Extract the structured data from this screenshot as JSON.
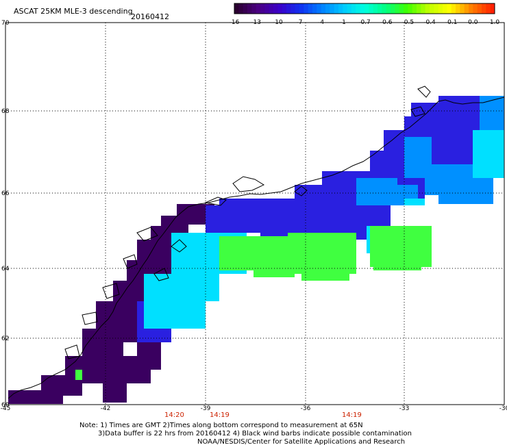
{
  "title": "ASCAT 25KM MLE-3 descending",
  "date": "20160412",
  "colorbar": {
    "labels": [
      "-16",
      "-13",
      "-10",
      "-7",
      "-4",
      "-1",
      "-0.7",
      "-0.6",
      "-0.5",
      "-0.4",
      "-0.1",
      "0.0",
      "1.0"
    ],
    "colors": [
      "#2a0030",
      "#4a0080",
      "#3b00c8",
      "#1030f0",
      "#0080ff",
      "#00c8ff",
      "#00ffe0",
      "#00ff80",
      "#40ff00",
      "#c0ff00",
      "#ffff00",
      "#ff8000",
      "#ff2000"
    ]
  },
  "axes": {
    "lon_labels": [
      "-45",
      "-42",
      "-39",
      "-36",
      "-33",
      "-30"
    ],
    "lat_labels": [
      "70",
      "68",
      "66",
      "64",
      "62",
      "60"
    ]
  },
  "times": [
    "14:20",
    "14:19",
    "14:19"
  ],
  "notes": [
    "Note: 1) Times are GMT 2)Times along bottom correspond to measurement at 65N",
    "3)Data buffer is 22 hrs from 20160412 4) Black wind barbs indicate possible contamination",
    "NOAA/NESDIS/Center for Satellite Applications and Research"
  ],
  "legend_colors": {
    "very_low": "#3a0060",
    "low": "#2a20e0",
    "mid": "#0090ff",
    "cyan": "#00e0ff",
    "green": "#40ff40",
    "coast": "#000000"
  }
}
